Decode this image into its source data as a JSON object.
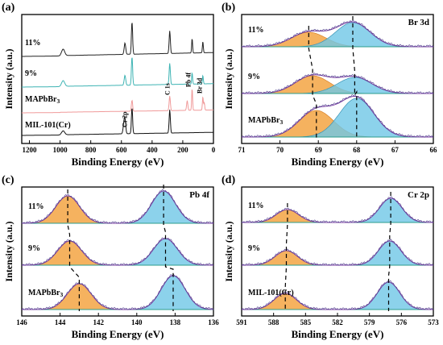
{
  "panels": [
    {
      "letter": "(a)",
      "corner": "",
      "ylabel": "Intensity (a.u.)",
      "xlabel": "Binding Energy (eV)",
      "ticks": [
        "1200",
        "1000",
        "800",
        "600",
        "400",
        "200",
        "0"
      ],
      "xlim": [
        1250,
        0
      ],
      "series": [
        {
          "name": "11%",
          "color": "#222222"
        },
        {
          "name": "9%",
          "color": "#3fb4b4"
        },
        {
          "name": "MAPbBr3",
          "color": "#f09a9a"
        },
        {
          "name": "MIL-101(Cr)",
          "color": "#111111"
        }
      ],
      "annotations": [
        "Cr 2p",
        "C 1s",
        "Pb 4f",
        "Br 3d"
      ]
    },
    {
      "letter": "(b)",
      "corner": "Br 3d",
      "ylabel": "Intensity (a.u.)",
      "xlabel": "Binding Energy (eV)",
      "ticks": [
        "71",
        "70",
        "69",
        "68",
        "67",
        "66"
      ],
      "xlim": [
        71,
        66
      ],
      "series": [
        {
          "name": "11%"
        },
        {
          "name": "9%"
        },
        {
          "name": "MAPbBr3"
        }
      ],
      "dashed_peaks": [
        69.25,
        68.1
      ]
    },
    {
      "letter": "(c)",
      "corner": "Pb 4f",
      "ylabel": "Intensity (a.u.)",
      "xlabel": "Binding Energy (eV)",
      "ticks": [
        "146",
        "144",
        "142",
        "140",
        "138",
        "136"
      ],
      "xlim": [
        146,
        136
      ],
      "series": [
        {
          "name": "11%"
        },
        {
          "name": "9%"
        },
        {
          "name": "MAPbBr3"
        }
      ],
      "dashed_peaks": [
        143.6,
        138.6
      ]
    },
    {
      "letter": "(d)",
      "corner": "Cr 2p",
      "ylabel": "Intensity (a.u.)",
      "xlabel": "Binding Energy (eV)",
      "ticks": [
        "591",
        "588",
        "585",
        "582",
        "579",
        "576",
        "573"
      ],
      "xlim": [
        591,
        573
      ],
      "series": [
        {
          "name": "11%"
        },
        {
          "name": "9%"
        },
        {
          "name": "MIL-101(Cr)"
        }
      ],
      "dashed_peaks": [
        586.7,
        577.0
      ]
    }
  ],
  "chart_data": [
    {
      "type": "line",
      "panel": "(a)",
      "xlabel": "Binding Energy (eV)",
      "ylabel": "Intensity (a.u.)",
      "xlim": [
        1250,
        0
      ],
      "log": false,
      "grid": false,
      "peaks_eV": {
        "Cr 2p": 577,
        "O 1s": 531,
        "C 1s": 285,
        "Pb 4f": 139,
        "Br 3d": 69
      },
      "series": [
        "11%",
        "9%",
        "MAPbBr3",
        "MIL-101(Cr)"
      ]
    },
    {
      "type": "line",
      "panel": "(b)",
      "title": "Br 3d",
      "xlabel": "Binding Energy (eV)",
      "ylabel": "Intensity (a.u.)",
      "xlim": [
        71,
        66
      ],
      "series": [
        {
          "name": "11%",
          "component_peaks_eV": [
            69.25,
            68.1
          ]
        },
        {
          "name": "9%",
          "component_peaks_eV": [
            69.15,
            68.05
          ]
        },
        {
          "name": "MAPbBr3",
          "component_peaks_eV": [
            69.05,
            68.0
          ]
        }
      ]
    },
    {
      "type": "line",
      "panel": "(c)",
      "title": "Pb 4f",
      "xlabel": "Binding Energy (eV)",
      "ylabel": "Intensity (a.u.)",
      "xlim": [
        146,
        136
      ],
      "series": [
        {
          "name": "11%",
          "component_peaks_eV": [
            143.6,
            138.6
          ]
        },
        {
          "name": "9%",
          "component_peaks_eV": [
            143.5,
            138.5
          ]
        },
        {
          "name": "MAPbBr3",
          "component_peaks_eV": [
            143.0,
            138.1
          ]
        }
      ]
    },
    {
      "type": "line",
      "panel": "(d)",
      "title": "Cr 2p",
      "xlabel": "Binding Energy (eV)",
      "ylabel": "Intensity (a.u.)",
      "xlim": [
        591,
        573
      ],
      "series": [
        {
          "name": "11%",
          "component_peaks_eV": [
            586.7,
            577.0
          ]
        },
        {
          "name": "9%",
          "component_peaks_eV": [
            586.8,
            577.1
          ]
        },
        {
          "name": "MIL-101(Cr)",
          "component_peaks_eV": [
            586.9,
            577.2
          ]
        }
      ]
    }
  ]
}
